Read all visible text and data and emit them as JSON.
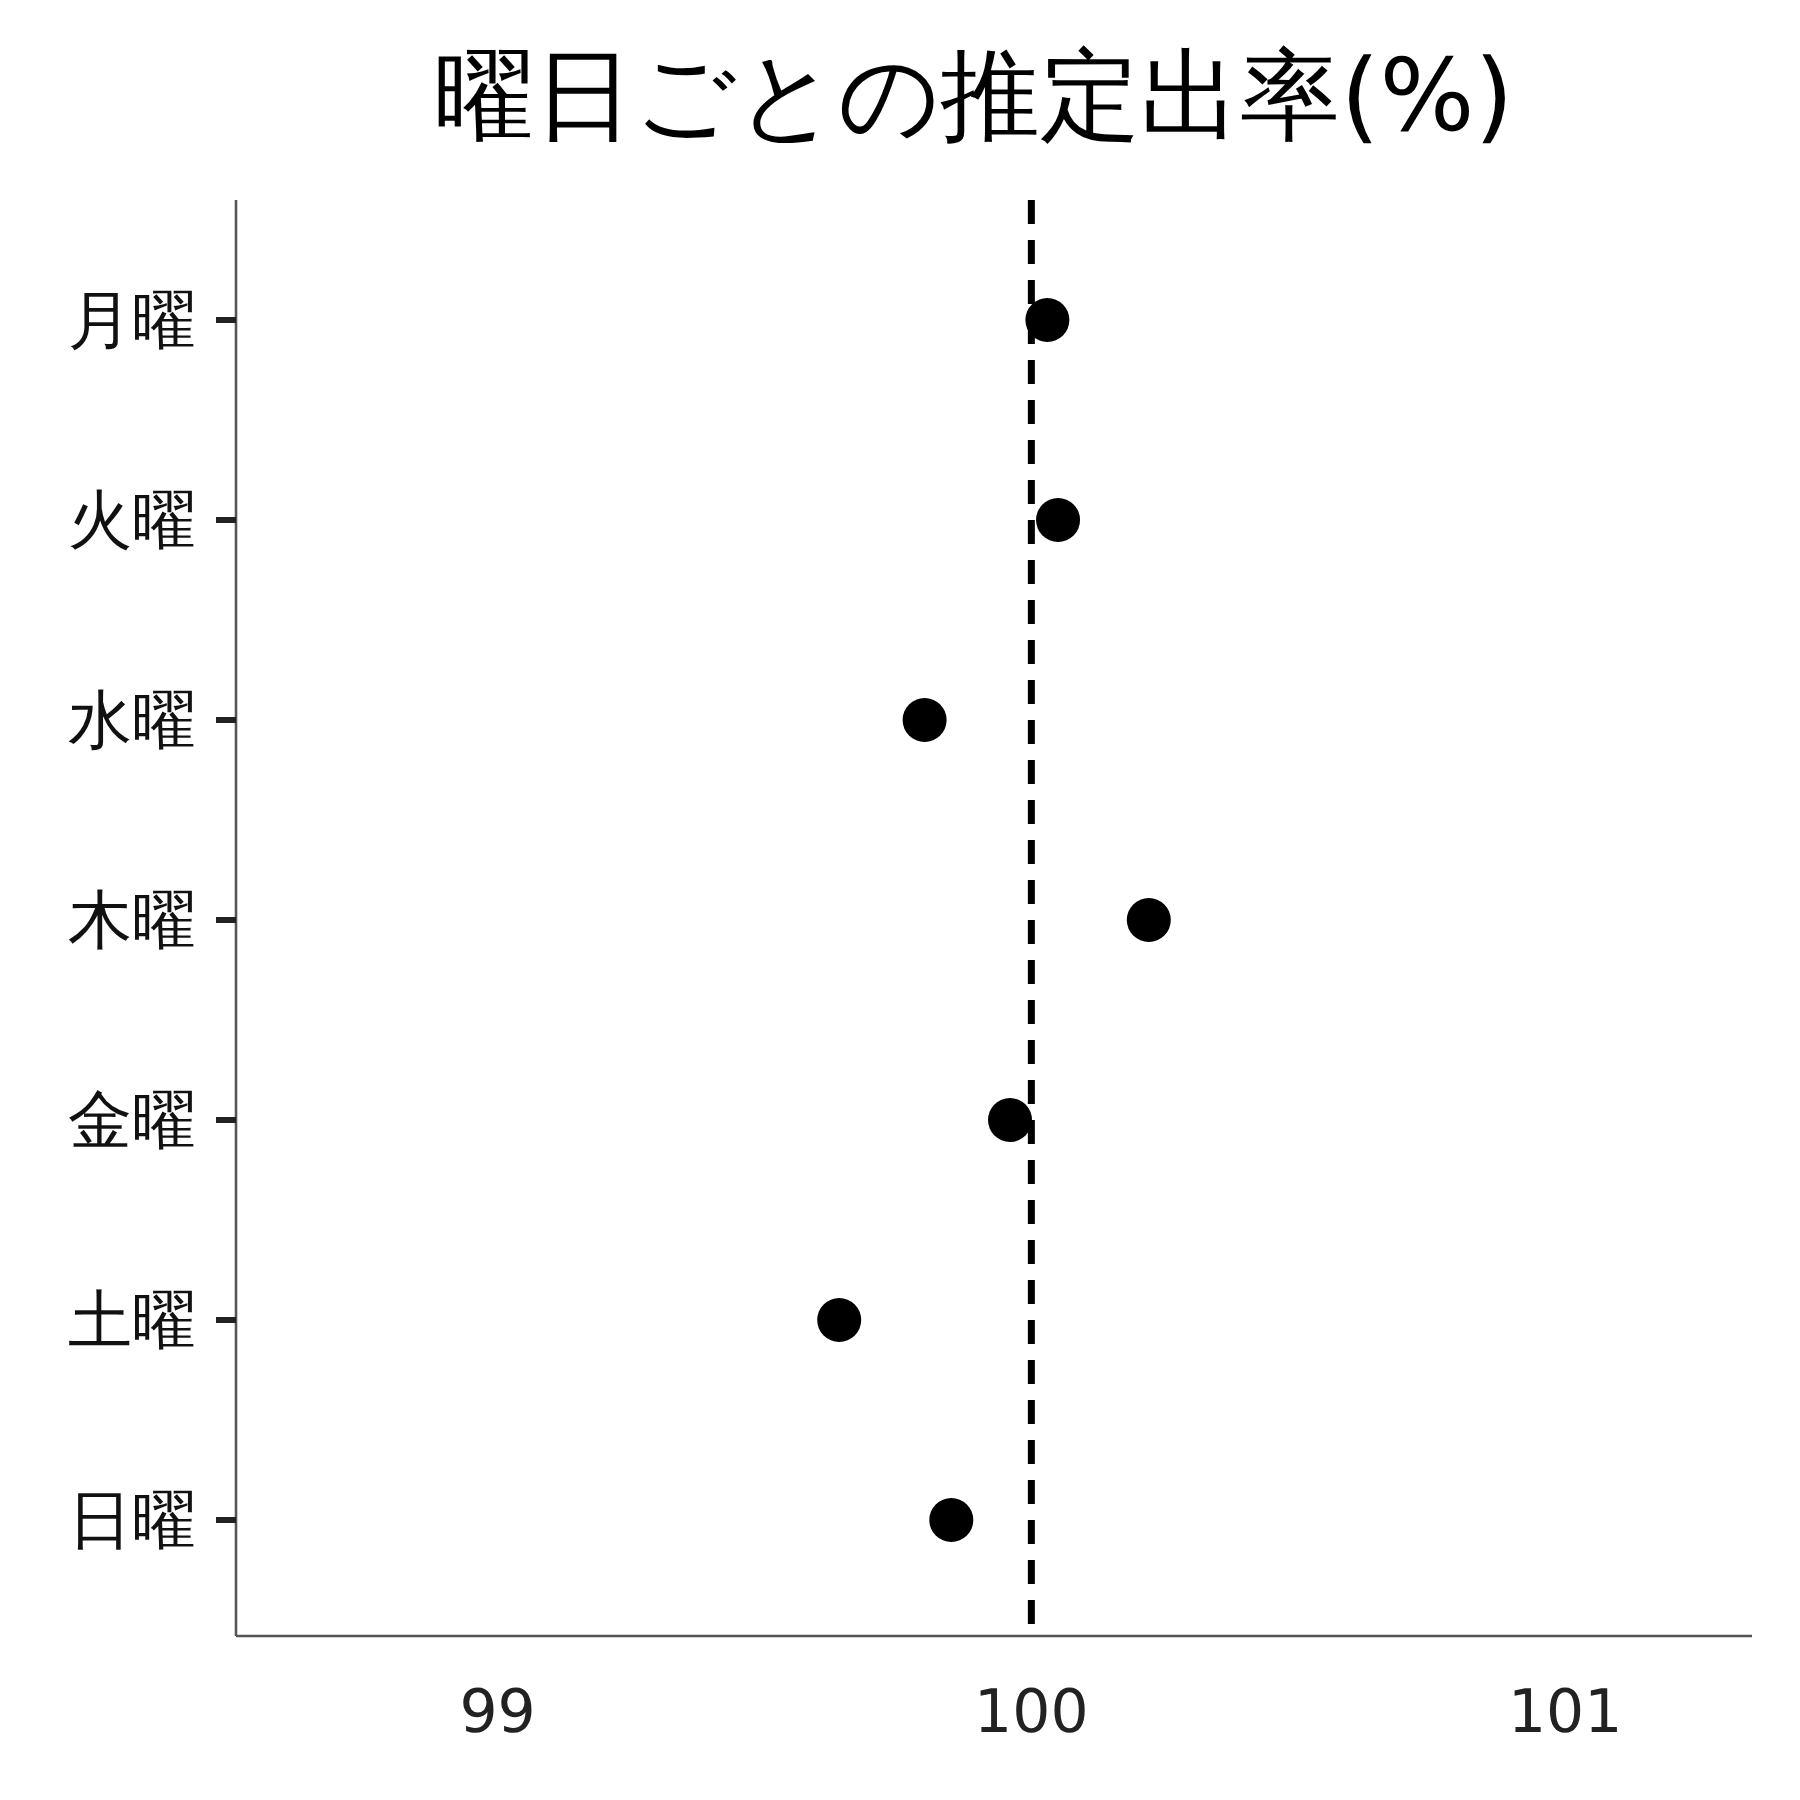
{
  "chart_data": {
    "type": "scatter",
    "title": "曜日ごとの推定出率(%)",
    "orientation": "horizontal",
    "categories": [
      "月曜",
      "火曜",
      "水曜",
      "木曜",
      "金曜",
      "土曜",
      "日曜"
    ],
    "values": [
      100.03,
      100.05,
      99.8,
      100.22,
      99.96,
      99.64,
      99.85
    ],
    "color": "#000000",
    "marker": "circle",
    "grid": false,
    "xlim": [
      98.51,
      101.35
    ],
    "xticks": [
      99,
      100,
      101
    ],
    "ref_lines": [
      {
        "axis": "x",
        "value": 100,
        "line_style": "dashed",
        "color": "#000000"
      }
    ]
  }
}
